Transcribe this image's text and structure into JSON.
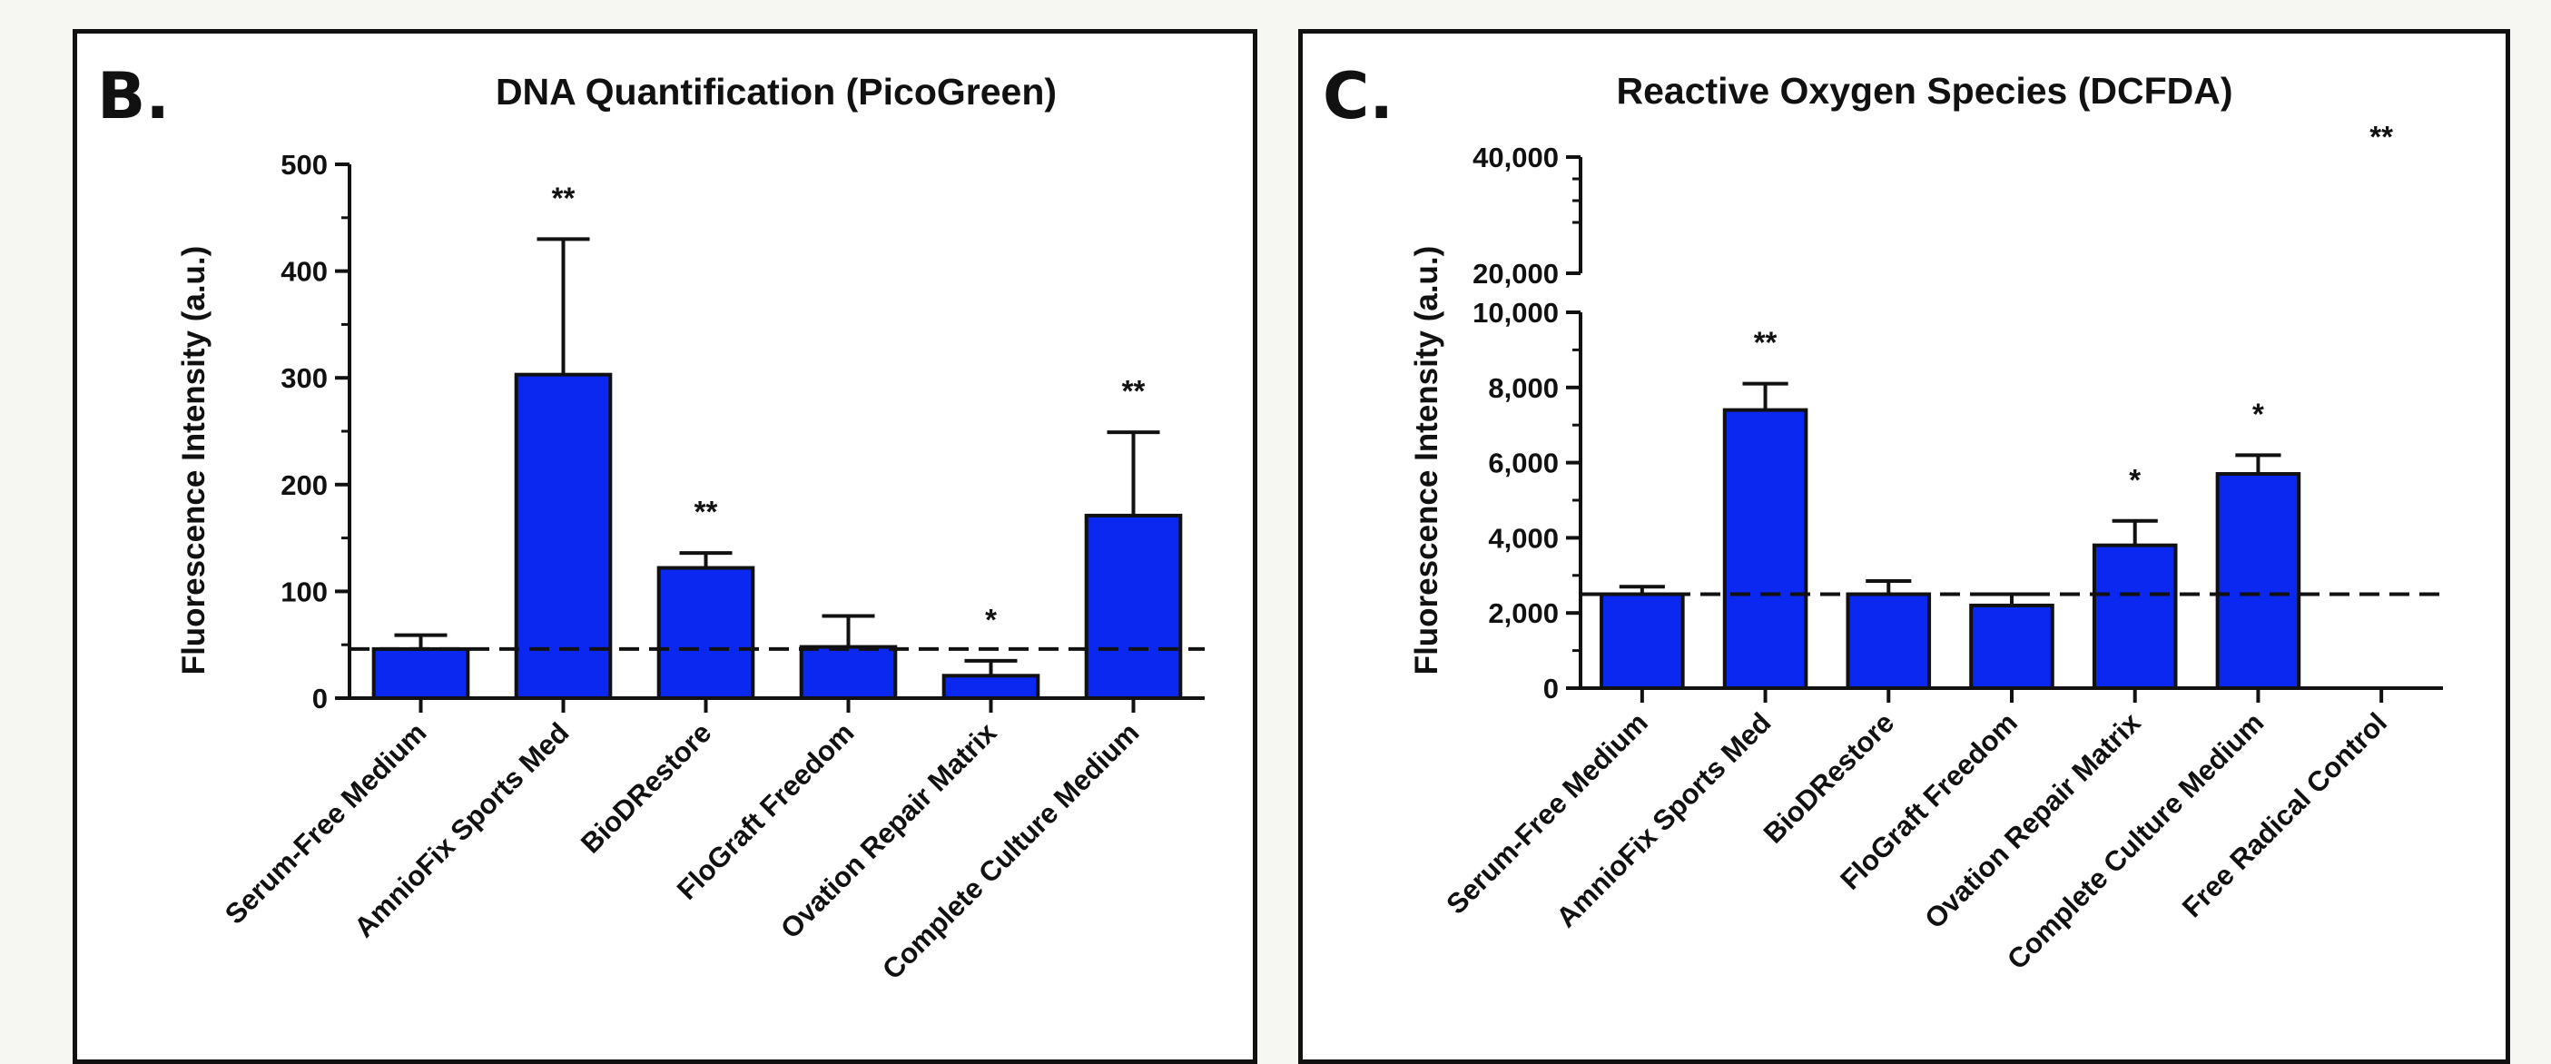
{
  "chart_data": [
    {
      "panel_label": "B.",
      "type": "bar",
      "title": "DNA Quantification (PicoGreen)",
      "xlabel": "",
      "ylabel": "Fluorescence Intensity (a.u.)",
      "ylim": [
        0,
        500
      ],
      "yticks": [
        0,
        100,
        200,
        300,
        400,
        500
      ],
      "ytick_labels": [
        "0",
        "100",
        "200",
        "300",
        "400",
        "500"
      ],
      "categories": [
        "Serum-Free Medium",
        "AmnioFix Sports Med",
        "BioDRestore",
        "FloGraft Freedom",
        "Ovation Repair Matrix",
        "Complete Culture Medium"
      ],
      "values": [
        46,
        303,
        122,
        48,
        21,
        171
      ],
      "error": [
        13,
        127,
        14,
        29,
        14,
        78
      ],
      "significance": [
        "",
        "**",
        "**",
        "",
        "*",
        "**"
      ],
      "reference_line": 46,
      "bar_color": "#0a28f0",
      "grid": false
    },
    {
      "panel_label": "C.",
      "type": "bar",
      "title": "Reactive Oxygen Species (DCFDA)",
      "xlabel": "",
      "ylabel": "Fluorescence Intensity (a.u.)",
      "ylim": [
        0,
        40000
      ],
      "axis_break": [
        10000,
        20000
      ],
      "yticks": [
        0,
        2000,
        4000,
        6000,
        8000,
        10000,
        20000,
        40000
      ],
      "ytick_labels": [
        "0",
        "2,000",
        "4,000",
        "6,000",
        "8,000",
        "10,000",
        "20,000",
        "40,000"
      ],
      "categories": [
        "Serum-Free Medium",
        "AmnioFix Sports Med",
        "BioDRestore",
        "FloGraft Freedom",
        "Ovation Repair Matrix",
        "Complete Culture Medium",
        "Free Radical Control"
      ],
      "values": [
        2500,
        7400,
        2500,
        2200,
        3800,
        5700,
        null
      ],
      "error": [
        200,
        700,
        350,
        300,
        650,
        500,
        null
      ],
      "significance": [
        "",
        "**",
        "",
        "",
        "*",
        "*",
        "**"
      ],
      "reference_line": 2500,
      "bar_color": "#0a28f0",
      "grid": false
    }
  ]
}
